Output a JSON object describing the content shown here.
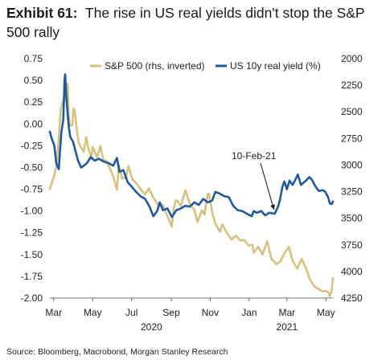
{
  "header": {
    "exhibit": "Exhibit 61:",
    "title": "The rise in US real yields didn't stop the S&P 500 rally"
  },
  "footer": {
    "source": "Source: Bloomberg, Macrobond, Morgan Stanley Research"
  },
  "chart_data": {
    "type": "line",
    "x_axis": {
      "type": "date",
      "range": [
        "2020-02-24",
        "2021-05-12"
      ],
      "month_ticks": [
        {
          "date": "2020-03-01",
          "label": "Mar"
        },
        {
          "date": "2020-05-01",
          "label": "May"
        },
        {
          "date": "2020-07-01",
          "label": "Jul"
        },
        {
          "date": "2020-09-01",
          "label": "Sep"
        },
        {
          "date": "2020-11-01",
          "label": "Nov"
        },
        {
          "date": "2021-01-01",
          "label": "Jan"
        },
        {
          "date": "2021-03-01",
          "label": "Mar"
        },
        {
          "date": "2021-05-01",
          "label": "May"
        }
      ],
      "year_labels": [
        {
          "date": "2020-08-01",
          "label": "2020"
        },
        {
          "date": "2021-03-01",
          "label": "2021"
        }
      ]
    },
    "y_left": {
      "min": -2.0,
      "max": 0.75,
      "ticks": [
        0.75,
        0.5,
        0.25,
        0.0,
        -0.25,
        -0.5,
        -0.75,
        -1.0,
        -1.25,
        -1.5,
        -1.75,
        -2.0
      ],
      "tick_labels": [
        "0.75",
        "0.50",
        "0.25",
        "0.00",
        "-0.25",
        "-0.50",
        "-0.75",
        "-1.00",
        "-1.25",
        "-1.50",
        "-1.75",
        "-2.00"
      ]
    },
    "y_right": {
      "inverted": true,
      "min": 2000,
      "max": 4250,
      "ticks": [
        2000,
        2250,
        2500,
        2750,
        3000,
        3250,
        3500,
        3750,
        4000,
        4250
      ],
      "tick_labels": [
        "2000",
        "2250",
        "2500",
        "2750",
        "3000",
        "3250",
        "3500",
        "3750",
        "4000",
        "4250"
      ]
    },
    "legend": {
      "placement": "top"
    },
    "annotation": {
      "label": "10-Feb-21",
      "date": "2021-02-10",
      "value": -1.03
    },
    "series": [
      {
        "name": "S&P 500 (rhs, inverted)",
        "axis": "right",
        "color": "#d8c17a",
        "points": [
          [
            "2020-02-24",
            3225
          ],
          [
            "2020-03-02",
            3090
          ],
          [
            "2020-03-05",
            3020
          ],
          [
            "2020-03-09",
            2750
          ],
          [
            "2020-03-12",
            2480
          ],
          [
            "2020-03-16",
            2390
          ],
          [
            "2020-03-18",
            2400
          ],
          [
            "2020-03-20",
            2305
          ],
          [
            "2020-03-23",
            2237
          ],
          [
            "2020-03-24",
            2447
          ],
          [
            "2020-03-26",
            2630
          ],
          [
            "2020-03-30",
            2626
          ],
          [
            "2020-04-01",
            2470
          ],
          [
            "2020-04-03",
            2490
          ],
          [
            "2020-04-06",
            2663
          ],
          [
            "2020-04-09",
            2790
          ],
          [
            "2020-04-14",
            2846
          ],
          [
            "2020-04-17",
            2875
          ],
          [
            "2020-04-21",
            2737
          ],
          [
            "2020-04-24",
            2836
          ],
          [
            "2020-04-29",
            2939
          ],
          [
            "2020-05-01",
            2830
          ],
          [
            "2020-05-08",
            2930
          ],
          [
            "2020-05-13",
            2820
          ],
          [
            "2020-05-18",
            2953
          ],
          [
            "2020-05-22",
            2955
          ],
          [
            "2020-05-29",
            3044
          ],
          [
            "2020-06-03",
            3122
          ],
          [
            "2020-06-08",
            3232
          ],
          [
            "2020-06-11",
            3002
          ],
          [
            "2020-06-16",
            3124
          ],
          [
            "2020-06-22",
            3118
          ],
          [
            "2020-06-26",
            3009
          ],
          [
            "2020-07-02",
            3130
          ],
          [
            "2020-07-08",
            3169
          ],
          [
            "2020-07-15",
            3226
          ],
          [
            "2020-07-22",
            3276
          ],
          [
            "2020-07-28",
            3218
          ],
          [
            "2020-08-04",
            3306
          ],
          [
            "2020-08-12",
            3380
          ],
          [
            "2020-08-19",
            3375
          ],
          [
            "2020-08-26",
            3478
          ],
          [
            "2020-09-02",
            3580
          ],
          [
            "2020-09-04",
            3426
          ],
          [
            "2020-09-08",
            3331
          ],
          [
            "2020-09-11",
            3340
          ],
          [
            "2020-09-16",
            3385
          ],
          [
            "2020-09-23",
            3237
          ],
          [
            "2020-09-30",
            3363
          ],
          [
            "2020-10-07",
            3419
          ],
          [
            "2020-10-12",
            3534
          ],
          [
            "2020-10-19",
            3426
          ],
          [
            "2020-10-23",
            3465
          ],
          [
            "2020-10-28",
            3271
          ],
          [
            "2020-10-30",
            3270
          ],
          [
            "2020-11-04",
            3443
          ],
          [
            "2020-11-09",
            3550
          ],
          [
            "2020-11-16",
            3627
          ],
          [
            "2020-11-20",
            3557
          ],
          [
            "2020-11-27",
            3638
          ],
          [
            "2020-12-04",
            3699
          ],
          [
            "2020-12-11",
            3663
          ],
          [
            "2020-12-18",
            3709
          ],
          [
            "2020-12-24",
            3703
          ],
          [
            "2020-12-31",
            3756
          ],
          [
            "2021-01-06",
            3748
          ],
          [
            "2021-01-08",
            3824
          ],
          [
            "2021-01-15",
            3768
          ],
          [
            "2021-01-22",
            3841
          ],
          [
            "2021-01-27",
            3750
          ],
          [
            "2021-01-29",
            3714
          ],
          [
            "2021-02-05",
            3886
          ],
          [
            "2021-02-10",
            3909
          ],
          [
            "2021-02-12",
            3934
          ],
          [
            "2021-02-19",
            3906
          ],
          [
            "2021-02-25",
            3829
          ],
          [
            "2021-03-04",
            3768
          ],
          [
            "2021-03-10",
            3898
          ],
          [
            "2021-03-17",
            3974
          ],
          [
            "2021-03-24",
            3881
          ],
          [
            "2021-03-31",
            3972
          ],
          [
            "2021-04-06",
            4074
          ],
          [
            "2021-04-13",
            4141
          ],
          [
            "2021-04-19",
            4163
          ],
          [
            "2021-04-26",
            4187
          ],
          [
            "2021-04-30",
            4181
          ],
          [
            "2021-05-06",
            4201
          ],
          [
            "2021-05-07",
            4232
          ],
          [
            "2021-05-10",
            4188
          ],
          [
            "2021-05-12",
            4063
          ]
        ]
      },
      {
        "name": "US 10y real yield (%)",
        "axis": "left",
        "color": "#1d5aa3",
        "points": [
          [
            "2020-02-24",
            -0.09
          ],
          [
            "2020-02-27",
            -0.17
          ],
          [
            "2020-03-02",
            -0.25
          ],
          [
            "2020-03-05",
            -0.45
          ],
          [
            "2020-03-09",
            -0.52
          ],
          [
            "2020-03-11",
            -0.3
          ],
          [
            "2020-03-13",
            -0.1
          ],
          [
            "2020-03-16",
            0.05
          ],
          [
            "2020-03-18",
            0.51
          ],
          [
            "2020-03-19",
            0.57
          ],
          [
            "2020-03-20",
            0.4
          ],
          [
            "2020-03-23",
            0.1
          ],
          [
            "2020-03-25",
            -0.05
          ],
          [
            "2020-03-27",
            -0.15
          ],
          [
            "2020-03-31",
            -0.2
          ],
          [
            "2020-04-03",
            -0.28
          ],
          [
            "2020-04-08",
            -0.42
          ],
          [
            "2020-04-13",
            -0.5
          ],
          [
            "2020-04-17",
            -0.48
          ],
          [
            "2020-04-22",
            -0.45
          ],
          [
            "2020-04-28",
            -0.38
          ],
          [
            "2020-05-04",
            -0.42
          ],
          [
            "2020-05-11",
            -0.4
          ],
          [
            "2020-05-18",
            -0.43
          ],
          [
            "2020-05-26",
            -0.45
          ],
          [
            "2020-06-02",
            -0.48
          ],
          [
            "2020-06-08",
            -0.39
          ],
          [
            "2020-06-12",
            -0.55
          ],
          [
            "2020-06-18",
            -0.53
          ],
          [
            "2020-06-25",
            -0.67
          ],
          [
            "2020-07-01",
            -0.72
          ],
          [
            "2020-07-08",
            -0.78
          ],
          [
            "2020-07-15",
            -0.83
          ],
          [
            "2020-07-22",
            -0.86
          ],
          [
            "2020-07-29",
            -0.95
          ],
          [
            "2020-08-04",
            -1.06
          ],
          [
            "2020-08-10",
            -1.0
          ],
          [
            "2020-08-14",
            -0.9
          ],
          [
            "2020-08-19",
            -0.99
          ],
          [
            "2020-08-26",
            -0.97
          ],
          [
            "2020-09-02",
            -1.07
          ],
          [
            "2020-09-09",
            -0.99
          ],
          [
            "2020-09-16",
            -0.97
          ],
          [
            "2020-09-23",
            -0.94
          ],
          [
            "2020-09-30",
            -0.95
          ],
          [
            "2020-10-07",
            -0.9
          ],
          [
            "2020-10-14",
            -0.93
          ],
          [
            "2020-10-21",
            -0.86
          ],
          [
            "2020-10-28",
            -0.9
          ],
          [
            "2020-11-04",
            -0.88
          ],
          [
            "2020-11-09",
            -0.78
          ],
          [
            "2020-11-16",
            -0.8
          ],
          [
            "2020-11-23",
            -0.83
          ],
          [
            "2020-11-30",
            -0.84
          ],
          [
            "2020-12-07",
            -0.94
          ],
          [
            "2020-12-14",
            -0.99
          ],
          [
            "2020-12-21",
            -1.0
          ],
          [
            "2020-12-28",
            -1.03
          ],
          [
            "2021-01-05",
            -1.06
          ],
          [
            "2021-01-08",
            -1.0
          ],
          [
            "2021-01-13",
            -1.02
          ],
          [
            "2021-01-20",
            -1.0
          ],
          [
            "2021-01-26",
            -1.05
          ],
          [
            "2021-02-01",
            -1.02
          ],
          [
            "2021-02-10",
            -1.03
          ],
          [
            "2021-02-15",
            -0.95
          ],
          [
            "2021-02-18",
            -0.88
          ],
          [
            "2021-02-22",
            -0.72
          ],
          [
            "2021-02-25",
            -0.66
          ],
          [
            "2021-03-01",
            -0.75
          ],
          [
            "2021-03-05",
            -0.65
          ],
          [
            "2021-03-10",
            -0.7
          ],
          [
            "2021-03-15",
            -0.63
          ],
          [
            "2021-03-18",
            -0.58
          ],
          [
            "2021-03-23",
            -0.7
          ],
          [
            "2021-03-31",
            -0.65
          ],
          [
            "2021-04-05",
            -0.61
          ],
          [
            "2021-04-09",
            -0.64
          ],
          [
            "2021-04-14",
            -0.71
          ],
          [
            "2021-04-20",
            -0.77
          ],
          [
            "2021-04-26",
            -0.76
          ],
          [
            "2021-04-30",
            -0.78
          ],
          [
            "2021-05-05",
            -0.85
          ],
          [
            "2021-05-07",
            -0.91
          ],
          [
            "2021-05-10",
            -0.92
          ],
          [
            "2021-05-12",
            -0.89
          ]
        ]
      }
    ]
  }
}
